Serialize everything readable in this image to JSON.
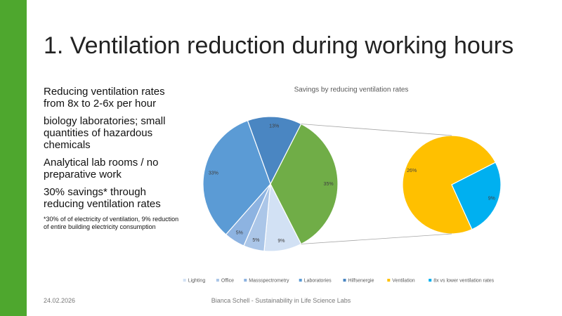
{
  "slide": {
    "title": "1. Ventilation reduction during working hours",
    "paragraphs": [
      "Reducing ventilation rates from 8x to 2-6x per hour",
      "biology laboratories; small quantities of hazardous chemicals",
      "Analytical lab rooms / no preparative work",
      "30% savings* through reducing ventilation rates"
    ],
    "footnote": "*30% of of electricity of ventilation, 9% reduction of entire building electricity consumption",
    "date": "24.02.2026",
    "footer": "Bianca Schell - Sustainability in Life Science Labs"
  },
  "chart_data": {
    "type": "pie-of-pie",
    "title": "Savings by reducing ventilation rates",
    "categories": [
      "Lighting",
      "Office",
      "Massspectrometry",
      "Laboratories",
      "Hilfsenergie"
    ],
    "values": [
      9,
      5,
      5,
      33,
      13
    ],
    "value_labels": [
      "9%",
      "5%",
      "5%",
      "33%",
      "13%"
    ],
    "colors": [
      "#d2e1f4",
      "#abc6e8",
      "#8db3e1",
      "#5b9bd5",
      "#4a86c2"
    ],
    "combined": {
      "value": 35,
      "value_label": "35%",
      "color": "#70ad47"
    },
    "secondary": {
      "categories": [
        "Ventilation",
        "8x vs lower ventilation rates"
      ],
      "values": [
        26,
        9
      ],
      "value_labels": [
        "26%",
        "9%"
      ],
      "colors": [
        "#ffc000",
        "#00b0f0"
      ]
    }
  }
}
